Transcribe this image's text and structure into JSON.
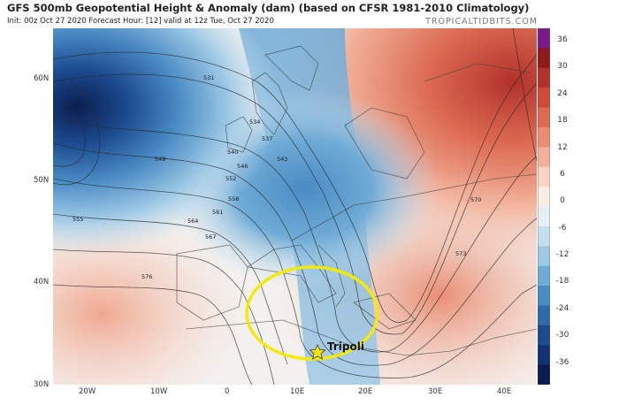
{
  "header": {
    "title": "GFS 500mb Geopotential Height & Anomaly (dam) (based on CFSR 1981-2010 Climatology)",
    "subtitle": "Init: 00z Oct 27 2020   Forecast Hour: [12]   valid at 12z Tue, Oct 27 2020",
    "brand": "TROPICALTIDBITS.COM"
  },
  "axes": {
    "lat_labels": [
      "60N",
      "50N",
      "40N",
      "30N"
    ],
    "lon_labels": [
      "20W",
      "10W",
      "0",
      "10E",
      "20E",
      "30E",
      "40E"
    ]
  },
  "colorbar": {
    "labels": [
      "36",
      "30",
      "24",
      "18",
      "12",
      "6",
      "0",
      "-6",
      "-12",
      "-18",
      "-24",
      "-30",
      "-36"
    ],
    "colors": [
      "#7a1b8a",
      "#8e1b1b",
      "#b2312b",
      "#cc4c38",
      "#dc6b52",
      "#e98e73",
      "#f2b19a",
      "#f8d4c5",
      "#fbeee8",
      "#e4f0f8",
      "#c6dff0",
      "#9ec9e6",
      "#6fabd6",
      "#4a8bc4",
      "#2f6aab",
      "#1c4b8f",
      "#123272",
      "#0b1d50"
    ]
  },
  "contours": [
    "531",
    "534",
    "537",
    "540",
    "543",
    "546",
    "549",
    "552",
    "555",
    "558",
    "561",
    "564",
    "567",
    "570",
    "573",
    "576"
  ],
  "marker": {
    "label": "Tripoli"
  },
  "colors": {
    "highlight": "#f3ea0c",
    "star": "#ffe600"
  }
}
